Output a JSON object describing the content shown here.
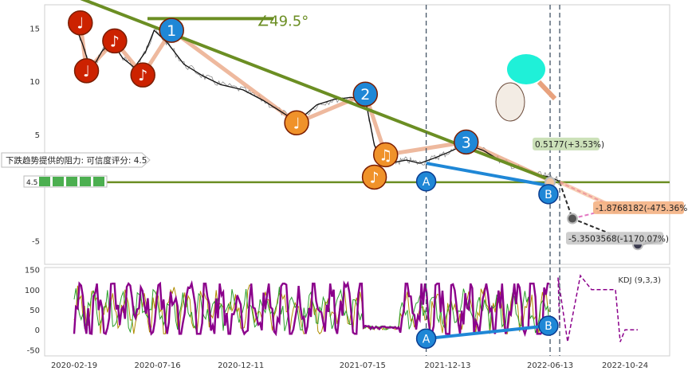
{
  "chart_data": [
    {
      "type": "line",
      "panel": "price",
      "x_ticks": [
        "2020-02-19",
        "2020-07-16",
        "2020-12-11",
        "2021-07-15",
        "2021-12-13",
        "2022-06-13",
        "2022-10-24"
      ],
      "y_ticks": [
        15,
        10,
        5,
        -5
      ],
      "ylim": [
        -7.2,
        17.2
      ],
      "grid": true,
      "series": [
        {
          "x": [
            "2020-02-19",
            "2020-03-05",
            "2020-03-20",
            "2020-04-08",
            "2020-04-25",
            "2020-05-15",
            "2020-06-05",
            "2020-06-25",
            "2020-07-10",
            "2020-08-03",
            "2020-09-01",
            "2020-10-05",
            "2020-11-05",
            "2020-12-15",
            "2021-01-20",
            "2021-02-25",
            "2021-03-20",
            "2021-04-25",
            "2021-05-25",
            "2021-06-25",
            "2021-07-20",
            "2021-08-05",
            "2021-08-20",
            "2021-09-10",
            "2021-10-01",
            "2021-10-25",
            "2021-11-20",
            "2021-12-13",
            "2022-01-15",
            "2022-02-15",
            "2022-03-15",
            "2022-04-15",
            "2022-05-15",
            "2022-06-13",
            "2022-06-30"
          ],
          "values": [
            15.5,
            13.5,
            11.0,
            12.8,
            13.8,
            12.2,
            11.3,
            12.8,
            14.8,
            13.6,
            11.6,
            10.5,
            9.7,
            9.2,
            8.2,
            7.0,
            6.2,
            7.8,
            8.3,
            8.5,
            8.3,
            4.0,
            2.5,
            2.4,
            2.6,
            2.3,
            2.8,
            3.3,
            4.1,
            3.5,
            2.6,
            1.9,
            1.3,
            1.0,
            0.6
          ]
        }
      ],
      "support_level": 0.5177,
      "trendline_angle": "∠49.5°",
      "resistance_note": "下跌趋势提供的阻力: 可信度评分: 4.5",
      "rating_badge": "4.5",
      "projections": [
        {
          "label": "0.5177(+3.53%)",
          "value": 0.5177,
          "color": "#c6deb1"
        },
        {
          "label": "-1.8768182(-475.36%)",
          "value": -1.8768182,
          "color": "#f4b183"
        },
        {
          "label": "-5.3503568(-1170.07%)",
          "value": -5.3503568,
          "color": "#c9c9c9"
        }
      ],
      "markers": [
        {
          "type": "note",
          "glyph": "♩",
          "x": "2020-03-01",
          "y": 15.5,
          "color": "#cc2200"
        },
        {
          "type": "note",
          "glyph": "♩",
          "x": "2020-03-12",
          "y": 11.0,
          "color": "#cc2200"
        },
        {
          "type": "note",
          "glyph": "♪",
          "x": "2020-05-01",
          "y": 13.8,
          "color": "#cc2200"
        },
        {
          "type": "note",
          "glyph": "♪",
          "x": "2020-06-20",
          "y": 10.6,
          "color": "#cc2200"
        },
        {
          "type": "wave",
          "glyph": "1",
          "x": "2020-08-10",
          "y": 14.8,
          "color": "#1f87d6"
        },
        {
          "type": "note",
          "glyph": "♩",
          "x": "2021-03-20",
          "y": 6.1,
          "color": "#f0922a"
        },
        {
          "type": "wave",
          "glyph": "2",
          "x": "2021-07-20",
          "y": 8.8,
          "color": "#1f87d6"
        },
        {
          "type": "note",
          "glyph": "♫",
          "x": "2021-08-25",
          "y": 3.1,
          "color": "#f0922a"
        },
        {
          "type": "note",
          "glyph": "♪",
          "x": "2021-08-05",
          "y": 1.0,
          "color": "#f0922a"
        },
        {
          "type": "point",
          "glyph": "A",
          "x": "2021-11-05",
          "y": 0.6,
          "color": "#1f87d6"
        },
        {
          "type": "wave",
          "glyph": "3",
          "x": "2022-01-15",
          "y": 4.3,
          "color": "#1f87d6"
        },
        {
          "type": "point",
          "glyph": "B",
          "x": "2022-06-10",
          "y": -0.6,
          "color": "#1f87d6"
        }
      ],
      "vlines": [
        "2021-11-05",
        "2022-06-13",
        "2022-06-30"
      ]
    },
    {
      "type": "line",
      "panel": "indicator",
      "title": "KDJ (9,3,3)",
      "y_ticks": [
        150,
        100,
        50,
        0,
        -50
      ],
      "ylim": [
        -65,
        155
      ],
      "grid": true,
      "series": [
        {
          "name": "K",
          "color": "#b08d00"
        },
        {
          "name": "D",
          "color": "#2ca02c"
        },
        {
          "name": "J",
          "color": "#8b008b"
        }
      ],
      "markers": [
        {
          "type": "point",
          "glyph": "A",
          "x": "2021-11-05",
          "y": -22,
          "color": "#1f87d6"
        },
        {
          "type": "point",
          "glyph": "B",
          "x": "2022-06-10",
          "y": 10,
          "color": "#1f87d6"
        }
      ]
    }
  ],
  "colors": {
    "trend": "#6b8e23",
    "wave": "#1f87d6",
    "dashed_vline": "#445566",
    "kdj_main": "#8b008b"
  }
}
